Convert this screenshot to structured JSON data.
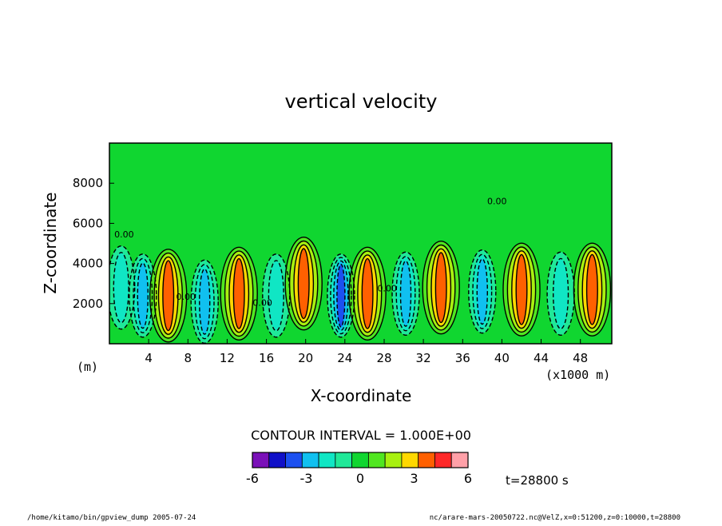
{
  "chart_data": {
    "type": "heatmap",
    "title": "vertical velocity",
    "xlabel": "X-coordinate",
    "ylabel": "Z-coordinate",
    "x_unit_left": "(m)",
    "x_unit_right": "(x1000 m)",
    "xlim": [
      0,
      51.2
    ],
    "ylim": [
      0,
      10000
    ],
    "x_ticks": [
      4,
      8,
      12,
      16,
      20,
      24,
      28,
      32,
      36,
      40,
      44,
      48
    ],
    "x_tick_labels": [
      "4",
      "8",
      "12",
      "16",
      "20",
      "24",
      "28",
      "32",
      "36",
      "40",
      "44",
      "48"
    ],
    "y_ticks": [
      2000,
      4000,
      6000,
      8000
    ],
    "y_tick_labels": [
      "2000",
      "4000",
      "6000",
      "8000"
    ],
    "contour_interval_text": "CONTOUR INTERVAL = 1.000E+00",
    "contour_interval": 1.0,
    "color_levels": [
      -6,
      -5,
      -4,
      -3,
      -2,
      -1,
      0,
      1,
      2,
      3,
      4,
      5,
      6
    ],
    "colorbar_labels": [
      "-6",
      "-3",
      "0",
      "3",
      "6"
    ],
    "colorbar_colors": [
      "#7a10b8",
      "#1010c8",
      "#1c50f0",
      "#10c0f0",
      "#10e6c4",
      "#20e898",
      "#10d630",
      "#50e620",
      "#a8f010",
      "#ffd800",
      "#ff6000",
      "#ff2828",
      "#ffa0a8"
    ],
    "contour_labels": [
      {
        "text": "0.00",
        "x": 1.5,
        "z": 5300
      },
      {
        "text": "0.00",
        "x": 39.5,
        "z": 6950
      },
      {
        "text": "0.00",
        "x": 7.8,
        "z": 2200
      },
      {
        "text": "0.00",
        "x": 15.6,
        "z": 1900
      },
      {
        "text": "0.00",
        "x": 28.3,
        "z": 2600
      }
    ],
    "cells": [
      {
        "x": 1.2,
        "z": 2800,
        "value": -2
      },
      {
        "x": 3.4,
        "z": 2400,
        "value": -3
      },
      {
        "x": 6.0,
        "z": 2400,
        "value": 4
      },
      {
        "x": 9.7,
        "z": 2100,
        "value": -3
      },
      {
        "x": 13.2,
        "z": 2500,
        "value": 4
      },
      {
        "x": 17.0,
        "z": 2400,
        "value": -2
      },
      {
        "x": 19.8,
        "z": 3000,
        "value": 4
      },
      {
        "x": 23.6,
        "z": 2400,
        "value": -4
      },
      {
        "x": 26.3,
        "z": 2500,
        "value": 4
      },
      {
        "x": 30.2,
        "z": 2500,
        "value": -3
      },
      {
        "x": 33.8,
        "z": 2800,
        "value": 4
      },
      {
        "x": 38.0,
        "z": 2600,
        "value": -3
      },
      {
        "x": 42.0,
        "z": 2700,
        "value": 4
      },
      {
        "x": 46.0,
        "z": 2500,
        "value": -2
      },
      {
        "x": 49.2,
        "z": 2700,
        "value": 4
      }
    ]
  },
  "annotations": {
    "time_label": "t=28800 s",
    "footer_left": "/home/kitamo/bin/gpview_dump   2005-07-24",
    "footer_right": "nc/arare-mars-20050722.nc@VelZ,x=0:51200,z=0:10000,t=28800"
  }
}
